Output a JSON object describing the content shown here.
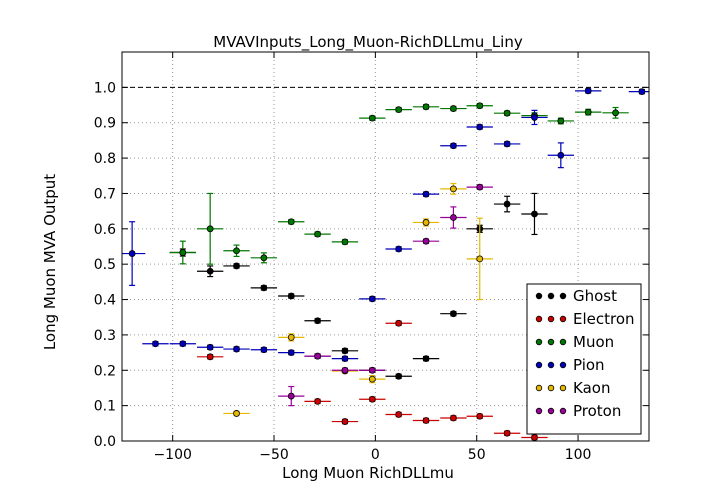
{
  "chart_data": {
    "type": "scatter",
    "title": "MVAVInputs_Long_Muon-RichDLLmu_Liny",
    "xlabel": "Long Muon RichDLLmu",
    "ylabel": "Long Muon MVA Output",
    "xlim": [
      -125,
      135
    ],
    "ylim": [
      0.0,
      1.1
    ],
    "xticks": [
      -100,
      -50,
      0,
      50,
      100
    ],
    "yticks": [
      0.0,
      0.1,
      0.2,
      0.3,
      0.4,
      0.5,
      0.6,
      0.7,
      0.8,
      0.9,
      1.0
    ],
    "grid": true,
    "reference_line_y": 1.0,
    "legend_position": "bottom-right",
    "series": [
      {
        "name": "Ghost",
        "color": "#000000",
        "points": [
          {
            "x": -95,
            "y": 0.533,
            "xerr": 6.5,
            "yerr": 0.01
          },
          {
            "x": -81.5,
            "y": 0.48,
            "xerr": 6.5,
            "yerr": 0.015
          },
          {
            "x": -68.5,
            "y": 0.495,
            "xerr": 6.5,
            "yerr": 0.006
          },
          {
            "x": -55,
            "y": 0.433,
            "xerr": 6.5,
            "yerr": 0.006
          },
          {
            "x": -41.5,
            "y": 0.41,
            "xerr": 6.5,
            "yerr": 0.006
          },
          {
            "x": -28.5,
            "y": 0.34,
            "xerr": 6.5,
            "yerr": 0.006
          },
          {
            "x": -15,
            "y": 0.255,
            "xerr": 6.5,
            "yerr": 0.006
          },
          {
            "x": -1.5,
            "y": 0.2,
            "xerr": 6.5,
            "yerr": 0.006
          },
          {
            "x": 11.5,
            "y": 0.183,
            "xerr": 6.5,
            "yerr": 0.006
          },
          {
            "x": 25,
            "y": 0.233,
            "xerr": 6.5,
            "yerr": 0.006
          },
          {
            "x": 38.5,
            "y": 0.36,
            "xerr": 6.5,
            "yerr": 0.006
          },
          {
            "x": 51.5,
            "y": 0.6,
            "xerr": 6.5,
            "yerr": 0.01
          },
          {
            "x": 65,
            "y": 0.67,
            "xerr": 6.5,
            "yerr": 0.022
          },
          {
            "x": 78.5,
            "y": 0.642,
            "xerr": 6.5,
            "yerr": 0.058
          }
        ]
      },
      {
        "name": "Electron",
        "color": "#cc0000",
        "points": [
          {
            "x": -81.5,
            "y": 0.238,
            "xerr": 6.5,
            "yerr": 0.006
          },
          {
            "x": -28.5,
            "y": 0.112,
            "xerr": 6.5,
            "yerr": 0.006
          },
          {
            "x": -15,
            "y": 0.055,
            "xerr": 6.5,
            "yerr": 0.006
          },
          {
            "x": -1.5,
            "y": 0.118,
            "xerr": 6.5,
            "yerr": 0.006
          },
          {
            "x": 11.5,
            "y": 0.333,
            "xerr": 6.5,
            "yerr": 0.006
          },
          {
            "x": 11.5,
            "y": 0.075,
            "xerr": 6.5,
            "yerr": 0.006
          },
          {
            "x": 25,
            "y": 0.058,
            "xerr": 6.5,
            "yerr": 0.006
          },
          {
            "x": 38.5,
            "y": 0.065,
            "xerr": 6.5,
            "yerr": 0.006
          },
          {
            "x": 51.5,
            "y": 0.07,
            "xerr": 6.5,
            "yerr": 0.006
          },
          {
            "x": 65,
            "y": 0.022,
            "xerr": 6.5,
            "yerr": 0.006
          },
          {
            "x": 78.5,
            "y": 0.01,
            "xerr": 6.5,
            "yerr": 0.006
          }
        ]
      },
      {
        "name": "Muon",
        "color": "#007700",
        "points": [
          {
            "x": -95,
            "y": 0.533,
            "xerr": 6.5,
            "yerr": 0.032
          },
          {
            "x": -81.5,
            "y": 0.6,
            "xerr": 6.5,
            "yerr": 0.1
          },
          {
            "x": -68.5,
            "y": 0.538,
            "xerr": 6.5,
            "yerr": 0.016
          },
          {
            "x": -55,
            "y": 0.518,
            "xerr": 6.5,
            "yerr": 0.014
          },
          {
            "x": -41.5,
            "y": 0.62,
            "xerr": 6.5,
            "yerr": 0.006
          },
          {
            "x": -28.5,
            "y": 0.585,
            "xerr": 6.5,
            "yerr": 0.006
          },
          {
            "x": -15,
            "y": 0.563,
            "xerr": 6.5,
            "yerr": 0.006
          },
          {
            "x": -1.5,
            "y": 0.913,
            "xerr": 6.5,
            "yerr": 0.006
          },
          {
            "x": 11.5,
            "y": 0.937,
            "xerr": 6.5,
            "yerr": 0.006
          },
          {
            "x": 25,
            "y": 0.945,
            "xerr": 6.5,
            "yerr": 0.006
          },
          {
            "x": 38.5,
            "y": 0.94,
            "xerr": 6.5,
            "yerr": 0.006
          },
          {
            "x": 51.5,
            "y": 0.948,
            "xerr": 6.5,
            "yerr": 0.006
          },
          {
            "x": 65,
            "y": 0.927,
            "xerr": 6.5,
            "yerr": 0.006
          },
          {
            "x": 78.5,
            "y": 0.92,
            "xerr": 6.5,
            "yerr": 0.008
          },
          {
            "x": 91.5,
            "y": 0.905,
            "xerr": 6.5,
            "yerr": 0.008
          },
          {
            "x": 105,
            "y": 0.93,
            "xerr": 6.5,
            "yerr": 0.008
          },
          {
            "x": 118.5,
            "y": 0.928,
            "xerr": 6.5,
            "yerr": 0.015
          }
        ]
      },
      {
        "name": "Pion",
        "color": "#0000bb",
        "points": [
          {
            "x": -120,
            "y": 0.53,
            "xerr": 6.5,
            "yerr": 0.09
          },
          {
            "x": -108.5,
            "y": 0.275,
            "xerr": 6.5,
            "yerr": 0.006
          },
          {
            "x": -95,
            "y": 0.275,
            "xerr": 6.5,
            "yerr": 0.006
          },
          {
            "x": -81.5,
            "y": 0.265,
            "xerr": 6.5,
            "yerr": 0.006
          },
          {
            "x": -68.5,
            "y": 0.26,
            "xerr": 6.5,
            "yerr": 0.006
          },
          {
            "x": -55,
            "y": 0.258,
            "xerr": 6.5,
            "yerr": 0.006
          },
          {
            "x": -41.5,
            "y": 0.25,
            "xerr": 6.5,
            "yerr": 0.006
          },
          {
            "x": -28.5,
            "y": 0.24,
            "xerr": 6.5,
            "yerr": 0.006
          },
          {
            "x": -15,
            "y": 0.233,
            "xerr": 6.5,
            "yerr": 0.006
          },
          {
            "x": -1.5,
            "y": 0.402,
            "xerr": 6.5,
            "yerr": 0.006
          },
          {
            "x": 11.5,
            "y": 0.543,
            "xerr": 6.5,
            "yerr": 0.006
          },
          {
            "x": 25,
            "y": 0.698,
            "xerr": 6.5,
            "yerr": 0.006
          },
          {
            "x": 38.5,
            "y": 0.835,
            "xerr": 6.5,
            "yerr": 0.006
          },
          {
            "x": 51.5,
            "y": 0.888,
            "xerr": 6.5,
            "yerr": 0.006
          },
          {
            "x": 65,
            "y": 0.84,
            "xerr": 6.5,
            "yerr": 0.006
          },
          {
            "x": 78.5,
            "y": 0.915,
            "xerr": 6.5,
            "yerr": 0.02
          },
          {
            "x": 91.5,
            "y": 0.808,
            "xerr": 6.5,
            "yerr": 0.035
          },
          {
            "x": 105,
            "y": 0.99,
            "xerr": 6.5,
            "yerr": 0.006
          },
          {
            "x": 131.5,
            "y": 0.988,
            "xerr": 6.5,
            "yerr": 0.006
          }
        ]
      },
      {
        "name": "Kaon",
        "color": "#e6b800",
        "points": [
          {
            "x": -68.5,
            "y": 0.078,
            "xerr": 6.5,
            "yerr": 0.006
          },
          {
            "x": -41.5,
            "y": 0.293,
            "xerr": 6.5,
            "yerr": 0.01
          },
          {
            "x": -15,
            "y": 0.198,
            "xerr": 6.5,
            "yerr": 0.006
          },
          {
            "x": -1.5,
            "y": 0.175,
            "xerr": 6.5,
            "yerr": 0.01
          },
          {
            "x": 25,
            "y": 0.618,
            "xerr": 6.5,
            "yerr": 0.01
          },
          {
            "x": 38.5,
            "y": 0.713,
            "xerr": 6.5,
            "yerr": 0.015
          },
          {
            "x": 51.5,
            "y": 0.515,
            "xerr": 6.5,
            "yerr": 0.115
          }
        ]
      },
      {
        "name": "Proton",
        "color": "#990099",
        "points": [
          {
            "x": -41.5,
            "y": 0.127,
            "xerr": 6.5,
            "yerr": 0.027
          },
          {
            "x": -28.5,
            "y": 0.24,
            "xerr": 6.5,
            "yerr": 0.006
          },
          {
            "x": -15,
            "y": 0.2,
            "xerr": 6.5,
            "yerr": 0.006
          },
          {
            "x": -1.5,
            "y": 0.2,
            "xerr": 6.5,
            "yerr": 0.006
          },
          {
            "x": 25,
            "y": 0.565,
            "xerr": 6.5,
            "yerr": 0.006
          },
          {
            "x": 38.5,
            "y": 0.632,
            "xerr": 6.5,
            "yerr": 0.03
          },
          {
            "x": 51.5,
            "y": 0.718,
            "xerr": 6.5,
            "yerr": 0.006
          }
        ]
      }
    ]
  }
}
